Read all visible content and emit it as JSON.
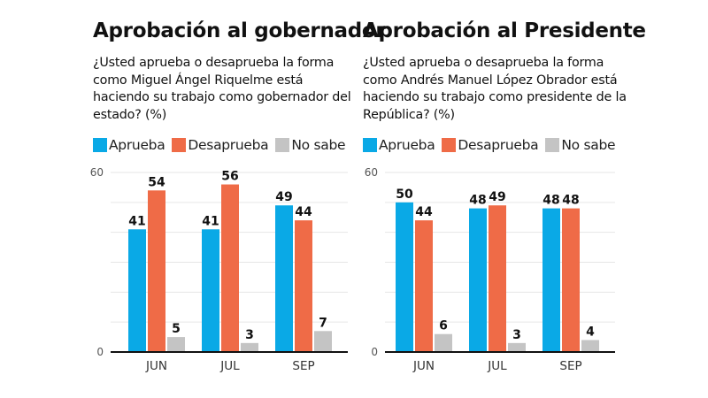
{
  "legend": {
    "items": [
      {
        "label": "Aprueba",
        "color": "#0aa9e6"
      },
      {
        "label": "Desaprueba",
        "color": "#ef6b47"
      },
      {
        "label": "No sabe",
        "color": "#c4c4c4"
      }
    ]
  },
  "chart_data": [
    {
      "type": "bar",
      "title": "Aprobación al gobernador",
      "subtitle": "¿Usted aprueba o desaprueba la forma como Miguel Ángel Riquelme está haciendo su trabajo como gobernador del estado? (%)",
      "categories": [
        "JUN",
        "JUL",
        "SEP"
      ],
      "series": [
        {
          "name": "Aprueba",
          "color": "#0aa9e6",
          "values": [
            41,
            41,
            49
          ]
        },
        {
          "name": "Desaprueba",
          "color": "#ef6b47",
          "values": [
            54,
            56,
            44
          ]
        },
        {
          "name": "No sabe",
          "color": "#c4c4c4",
          "values": [
            5,
            3,
            7
          ]
        }
      ],
      "xlabel": "",
      "ylabel": "",
      "ylim": [
        0,
        60
      ],
      "yticks_labeled": [
        0,
        60
      ],
      "grid_step": 10,
      "grid": true,
      "legend_position": "top-left"
    },
    {
      "type": "bar",
      "title": "Aprobación al Presidente",
      "subtitle": "¿Usted aprueba o desaprueba la forma como Andrés Manuel López Obrador está haciendo su trabajo como presidente de la República? (%)",
      "categories": [
        "JUN",
        "JUL",
        "SEP"
      ],
      "series": [
        {
          "name": "Aprueba",
          "color": "#0aa9e6",
          "values": [
            50,
            48,
            48
          ]
        },
        {
          "name": "Desaprueba",
          "color": "#ef6b47",
          "values": [
            44,
            49,
            48
          ]
        },
        {
          "name": "No sabe",
          "color": "#c4c4c4",
          "values": [
            6,
            3,
            4
          ]
        }
      ],
      "xlabel": "",
      "ylabel": "",
      "ylim": [
        0,
        60
      ],
      "yticks_labeled": [
        0,
        60
      ],
      "grid_step": 10,
      "grid": true,
      "legend_position": "top-left"
    }
  ]
}
